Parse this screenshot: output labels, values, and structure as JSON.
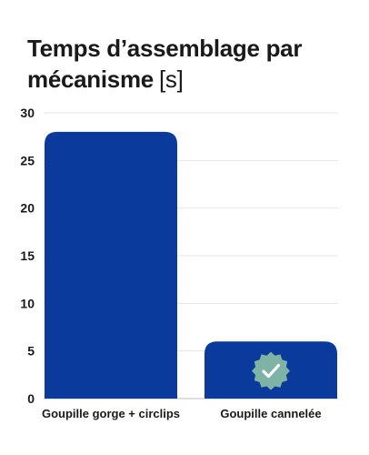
{
  "chart_data": {
    "type": "bar",
    "title": "Temps d’assemblage par mécanisme",
    "unit": "[s]",
    "categories": [
      "Goupille gorge + circlips",
      "Goupille cannelée"
    ],
    "values": [
      28,
      6
    ],
    "ylim": [
      0,
      30
    ],
    "yticks": [
      0,
      5,
      10,
      15,
      20,
      25,
      30
    ],
    "grid": true,
    "bar_color": "#0a3a9c",
    "badge_color": "#7fb3a6",
    "badge_icon": "check-icon",
    "badge_category_index": 1
  }
}
